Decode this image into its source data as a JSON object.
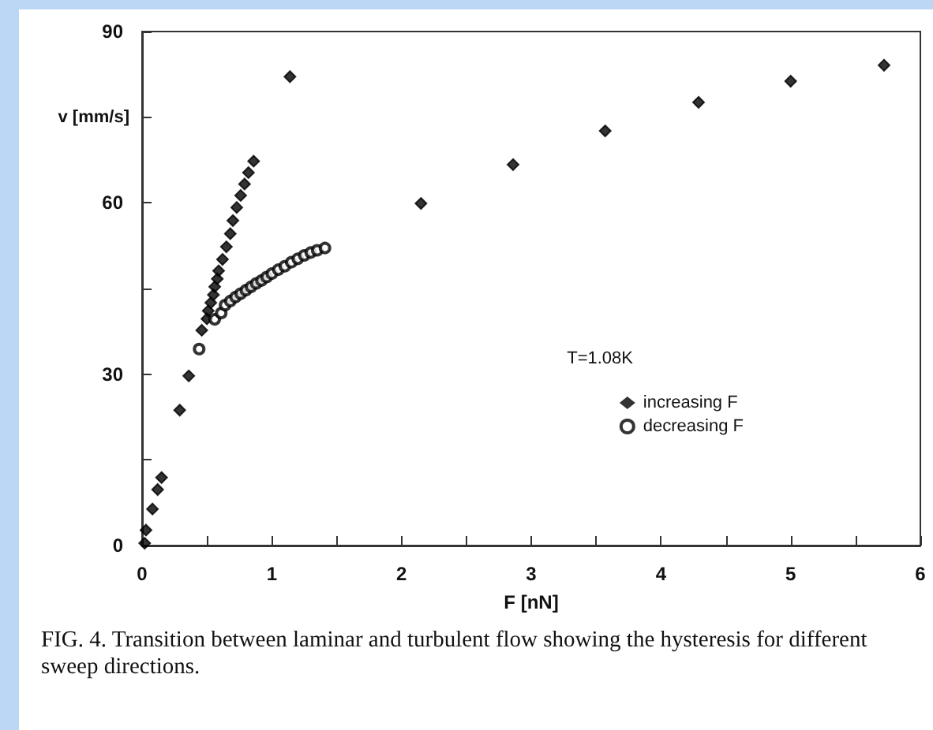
{
  "chart_data": {
    "type": "scatter",
    "xlabel": "F [nN]",
    "ylabel": "v [mm/s]",
    "legend_title": "T=1.08K",
    "annotations": [
      "FIG. 4.   Transition between laminar and turbulent flow showing the hysteresis for different sweep directions."
    ],
    "xlim": [
      0,
      6
    ],
    "xticks": [
      0,
      {
        "value": 0.5,
        "label": null
      },
      1,
      {
        "value": 1.5,
        "label": null
      },
      2,
      {
        "value": 2.5,
        "label": null
      },
      3,
      {
        "value": 3.5,
        "label": null
      },
      4,
      {
        "value": 4.5,
        "label": null
      },
      5,
      {
        "value": 5.5,
        "label": null
      },
      6
    ],
    "ylim": [
      0,
      90
    ],
    "yticks": [
      0,
      {
        "value": 15,
        "label": null
      },
      30,
      {
        "value": 45,
        "label": null
      },
      60,
      {
        "value": 75,
        "label": null
      },
      90
    ],
    "grid": false,
    "legend": "bottom right",
    "series": [
      {
        "name": "increasing F",
        "color": "#000000",
        "marker": "diamond",
        "x": [
          0.02,
          0.03,
          0.08,
          0.12,
          0.15,
          0.29,
          0.36,
          0.46,
          0.5,
          0.51,
          0.53,
          0.55,
          0.56,
          0.58,
          0.59,
          0.62,
          0.65,
          0.68,
          0.7,
          0.73,
          0.76,
          0.79,
          0.82,
          0.86,
          1.14,
          2.15,
          2.86,
          3.57,
          4.29,
          5.0,
          5.72
        ],
        "values": [
          0.4,
          2.7,
          6.4,
          9.8,
          11.9,
          23.7,
          29.7,
          37.7,
          39.7,
          41.1,
          42.5,
          43.9,
          45.3,
          46.7,
          48.1,
          50.1,
          52.3,
          54.6,
          56.9,
          59.2,
          61.3,
          63.3,
          65.3,
          67.3,
          82.1,
          59.9,
          66.7,
          72.6,
          77.6,
          81.3,
          84.1
        ]
      },
      {
        "name": "decreasing F",
        "color": "#000000",
        "marker": "circle",
        "x": [
          0.44,
          0.56,
          0.61,
          0.64,
          0.68,
          0.72,
          0.76,
          0.8,
          0.84,
          0.88,
          0.92,
          0.96,
          1.0,
          1.05,
          1.1,
          1.15,
          1.2,
          1.25,
          1.3,
          1.35,
          1.41
        ],
        "values": [
          34.4,
          39.6,
          40.7,
          42.1,
          42.8,
          43.5,
          44.1,
          44.7,
          45.3,
          45.9,
          46.4,
          47.0,
          47.6,
          48.3,
          48.9,
          49.6,
          50.2,
          50.8,
          51.3,
          51.7,
          52.1
        ]
      }
    ]
  }
}
